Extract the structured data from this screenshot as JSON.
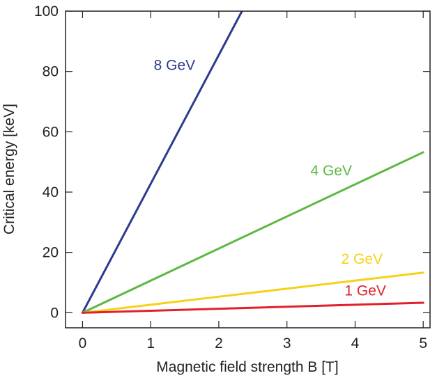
{
  "chart_data": {
    "type": "line",
    "title": "",
    "xlabel": "Magnetic field strength B [T]",
    "ylabel": "Critical energy [keV]",
    "xlim": [
      -0.25,
      5.1
    ],
    "ylim": [
      -5,
      100
    ],
    "xticks": [
      0,
      1,
      2,
      3,
      4,
      5
    ],
    "yticks": [
      0,
      20,
      40,
      60,
      80,
      100
    ],
    "xtick_labels": [
      "0",
      "1",
      "2",
      "3",
      "4",
      "5"
    ],
    "ytick_labels": [
      "0",
      "20",
      "40",
      "60",
      "80",
      "100"
    ],
    "grid": false,
    "legend": "none (series labelled inline)",
    "series": [
      {
        "name": "8 GeV",
        "color": "#2e3a8f",
        "x": [
          0,
          2.34
        ],
        "y": [
          0,
          100
        ],
        "label_at": [
          1.35,
          80.5
        ]
      },
      {
        "name": "4 GeV",
        "color": "#5bb840",
        "x": [
          0,
          5
        ],
        "y": [
          0,
          53.2
        ],
        "label_at": [
          3.65,
          45.5
        ]
      },
      {
        "name": "2 GeV",
        "color": "#f7d117",
        "x": [
          0,
          5
        ],
        "y": [
          0,
          13.3
        ],
        "label_at": [
          4.1,
          16.2
        ]
      },
      {
        "name": "1 GeV",
        "color": "#e0202a",
        "x": [
          0,
          5
        ],
        "y": [
          0,
          3.3
        ],
        "label_at": [
          4.15,
          5.7
        ]
      }
    ]
  }
}
